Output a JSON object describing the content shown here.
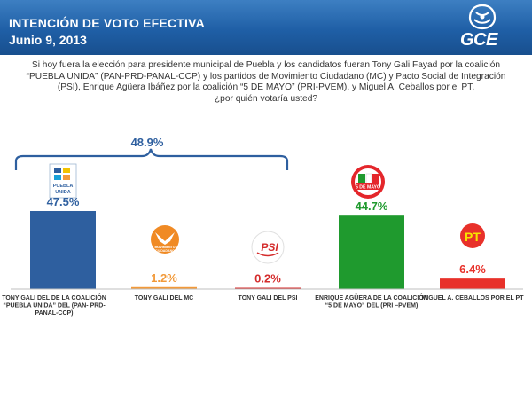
{
  "header": {
    "title": "INTENCIÓN DE VOTO EFECTIVA",
    "subtitle": "Junio 9, 2013",
    "logo_text": "GCE"
  },
  "question": [
    "Si hoy fuera la elección para presidente municipal de Puebla y los candidatos fueran Tony Gali Fayad por la coalición",
    "“PUEBLA UNIDA” (PAN-PRD-PANAL-CCP) y los partidos de Movimiento Ciudadano (MC) y Pacto Social de Integración",
    "(PSI),  Enrique Agüera Ibáñez por la coalición “5 DE MAYO” (PRI-PVEM), y Miguel A. Ceballos por el PT,",
    "¿por quién votaría usted?"
  ],
  "logos": {
    "puebla_unida": [
      "PUEBLA",
      "UNIDA"
    ],
    "mc": [
      "MOVIMIENTO",
      "CIUDADANO"
    ],
    "psi": "PSI",
    "cinco_mayo": "5 DE MAYO",
    "pt": "PT"
  },
  "chart_data": {
    "type": "bar",
    "categories": [
      [
        "TONY GALI DEL DE LA COALICIÓN",
        "“PUEBLA UNIDA” DEL (PAN- PRD-",
        "PANAL-CCP)"
      ],
      [
        "TONY GALI DEL MC"
      ],
      [
        "TONY GALI DEL PSI"
      ],
      [
        "ENRIQUE AGÜERA DE LA COALICIÓN",
        "“5 DE MAYO” DEL (PRI –PVEM)"
      ],
      [
        "MIGUEL A. CEBALLOS POR EL PT"
      ]
    ],
    "values": [
      47.5,
      1.2,
      0.2,
      44.7,
      6.4
    ],
    "value_labels": [
      "47.5%",
      "1.2%",
      "0.2%",
      "44.7%",
      "6.4%"
    ],
    "colors": [
      "#2e5f9f",
      "#f29a3a",
      "#d42b2b",
      "#1f9a2e",
      "#e8312a"
    ],
    "value_label_colors": [
      "#2e5f9f",
      "#f29a3a",
      "#d42b2b",
      "#1f9a2e",
      "#e8312a"
    ],
    "ylim": [
      0,
      50
    ],
    "grid": false,
    "annotation": {
      "label": "48.9%",
      "spans_categories": [
        0,
        2
      ],
      "color": "#2e5f9f"
    }
  }
}
